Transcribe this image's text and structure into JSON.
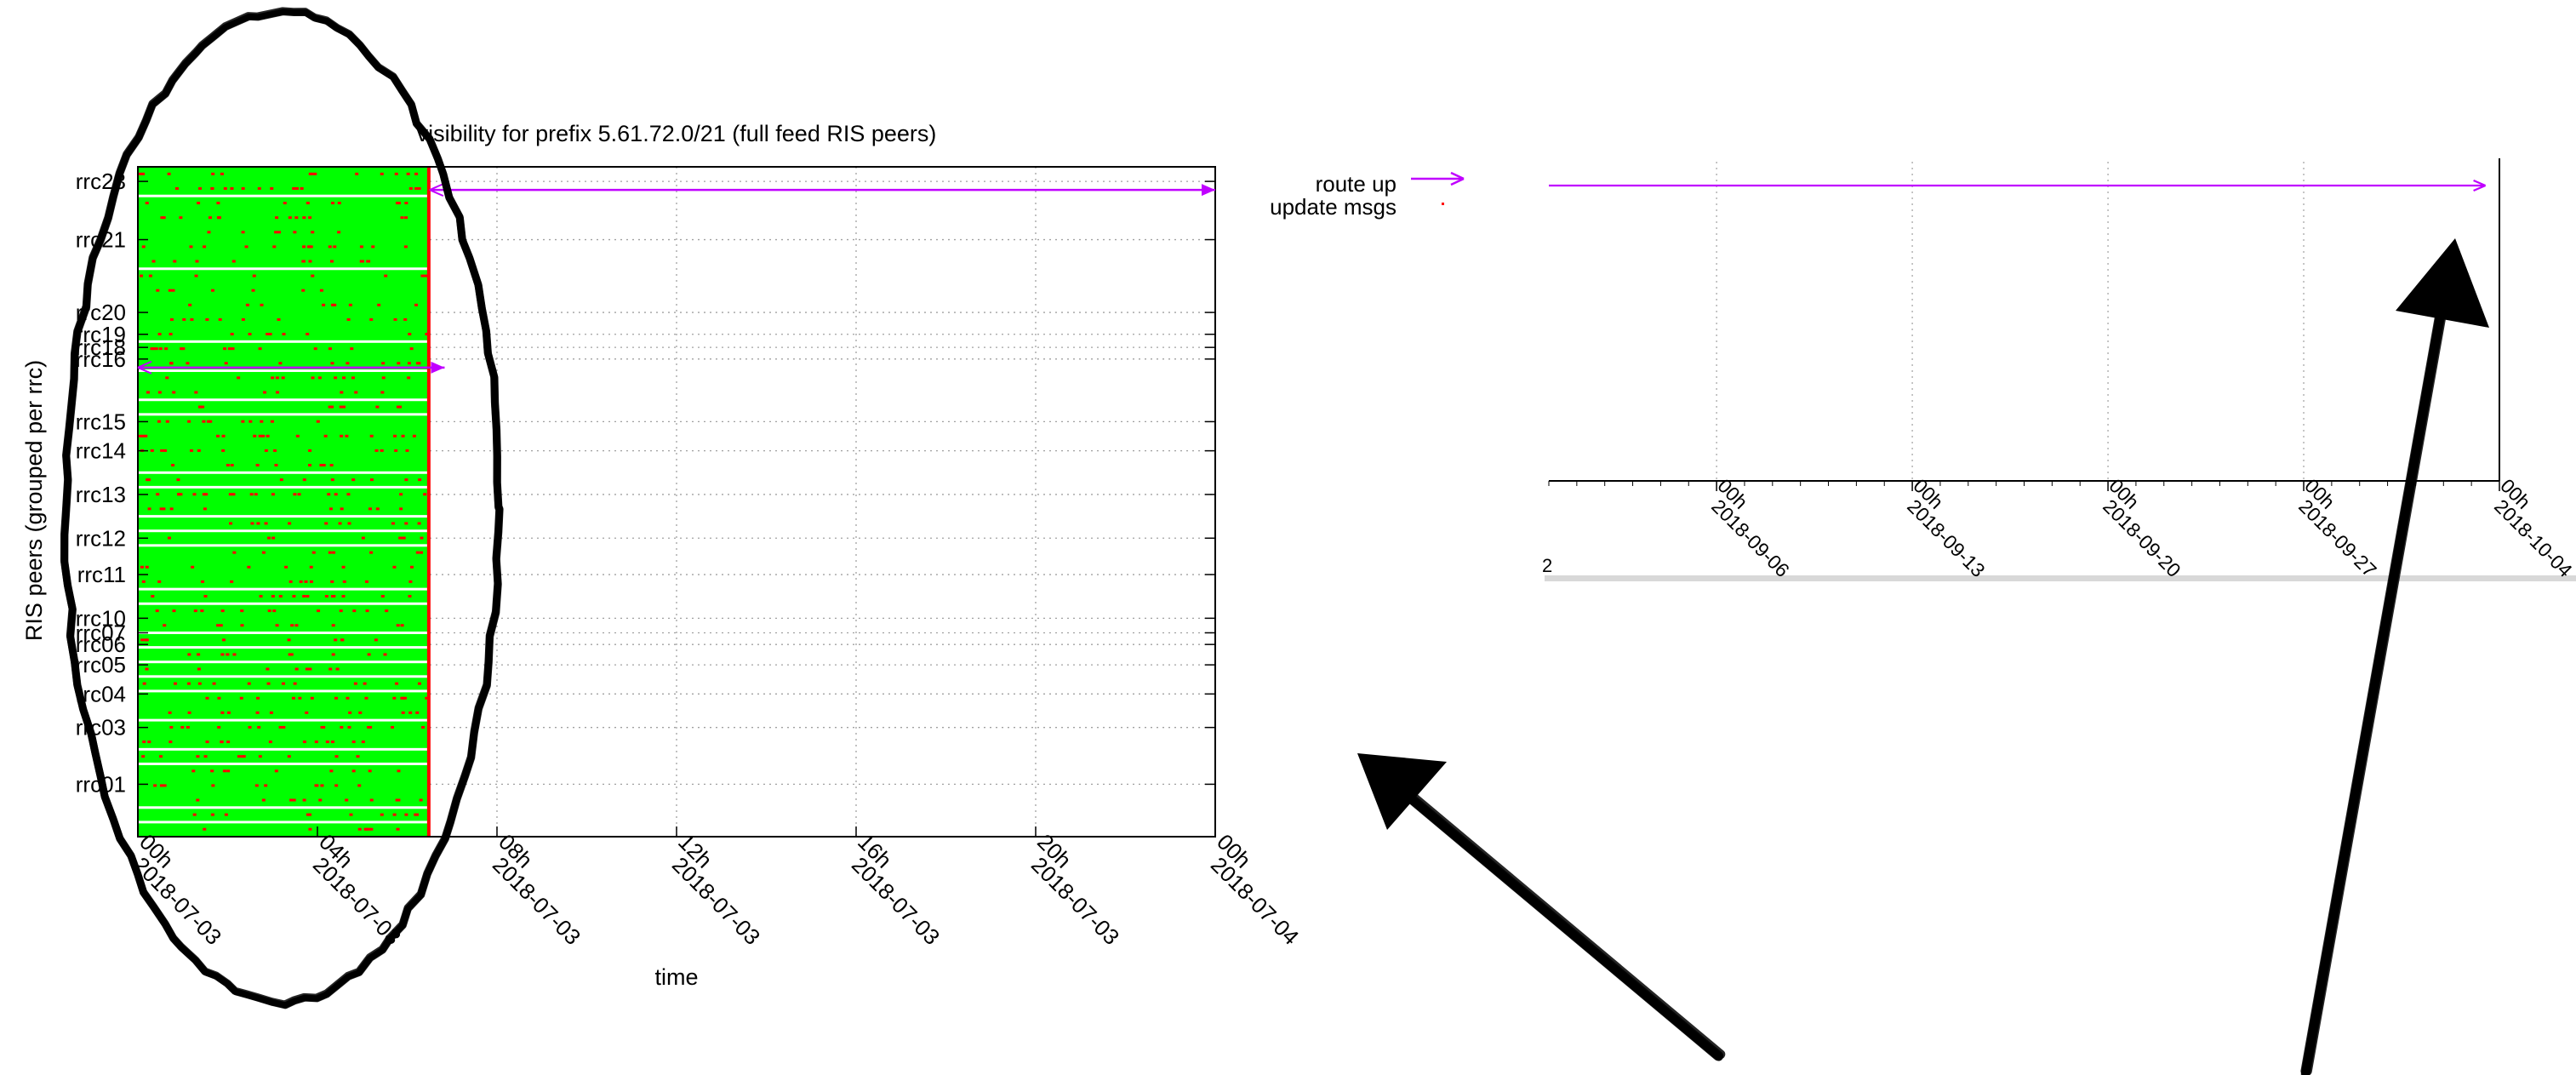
{
  "colors": {
    "visible": "#00ff00",
    "route_up": "#c000ff",
    "update_msgs": "#ff0000",
    "grid": "#a0a0a0",
    "annotation": "#000000",
    "inset_shadow": "#b8b8b8"
  },
  "chart_data": [
    {
      "type": "timeline",
      "title": "visibility for prefix 5.61.72.0/21 (full feed RIS peers)",
      "xlabel": "time",
      "ylabel": "RIS peers (grouped per rrc)",
      "x_ticks": [
        {
          "time": "2018-07-03 00:00",
          "lines": [
            "00h",
            "2018-07-03"
          ]
        },
        {
          "time": "2018-07-03 04:00",
          "lines": [
            "04h",
            "2018-07-03"
          ]
        },
        {
          "time": "2018-07-03 08:00",
          "lines": [
            "08h",
            "2018-07-03"
          ]
        },
        {
          "time": "2018-07-03 12:00",
          "lines": [
            "12h",
            "2018-07-03"
          ]
        },
        {
          "time": "2018-07-03 16:00",
          "lines": [
            "16h",
            "2018-07-03"
          ]
        },
        {
          "time": "2018-07-03 20:00",
          "lines": [
            "20h",
            "2018-07-03"
          ]
        },
        {
          "time": "2018-07-04 00:00",
          "lines": [
            "00h",
            "2018-07-04"
          ]
        }
      ],
      "xlim": [
        "2018-07-03 00:00",
        "2018-07-04 00:00"
      ],
      "data_end": "2018-07-03 06:30",
      "grid": true,
      "y_groups": [
        {
          "name": "rrc23",
          "peer_index": 1
        },
        {
          "name": "rrc21",
          "peer_index": 5
        },
        {
          "name": "rrc20",
          "peer_index": 10
        },
        {
          "name": "rrc19",
          "peer_index": 11.5
        },
        {
          "name": "rrc18",
          "peer_index": 12.4
        },
        {
          "name": "rrc16",
          "peer_index": 13.2
        },
        {
          "name": "rrc15",
          "peer_index": 17.5
        },
        {
          "name": "rrc14",
          "peer_index": 19.5
        },
        {
          "name": "rrc13",
          "peer_index": 22.5
        },
        {
          "name": "rrc12",
          "peer_index": 25.5
        },
        {
          "name": "rrc11",
          "peer_index": 28
        },
        {
          "name": "rrc10",
          "peer_index": 31
        },
        {
          "name": "rrc07",
          "peer_index": 32
        },
        {
          "name": "rrc06",
          "peer_index": 32.8
        },
        {
          "name": "rrc05",
          "peer_index": 34.2
        },
        {
          "name": "rrc04",
          "peer_index": 36.2
        },
        {
          "name": "rrc03",
          "peer_index": 38.5
        },
        {
          "name": "rrc01",
          "peer_index": 42.4
        }
      ],
      "peer_count": 46,
      "route_up_rows": [
        {
          "group": "rrc23",
          "start": "2018-07-03 06:30",
          "end": "2018-07-04 00:00"
        },
        {
          "group": "rrc16",
          "start": "2018-07-03 00:00",
          "end": "2018-07-03 06:50"
        }
      ],
      "legend": {
        "position": "right-outside",
        "entries": [
          {
            "label": "route up",
            "mark": "arrow"
          },
          {
            "label": "update msgs",
            "mark": "dot"
          }
        ]
      }
    },
    {
      "type": "timeline",
      "x_ticks": [
        {
          "time": "2018-09-06 00:00",
          "lines": [
            "00h",
            "2018-09-06"
          ]
        },
        {
          "time": "2018-09-13 00:00",
          "lines": [
            "00h",
            "2018-09-13"
          ]
        },
        {
          "time": "2018-09-20 00:00",
          "lines": [
            "00h",
            "2018-09-20"
          ]
        },
        {
          "time": "2018-09-27 00:00",
          "lines": [
            "00h",
            "2018-09-27"
          ]
        },
        {
          "time": "2018-10-04 00:00",
          "lines": [
            "00h",
            "2018-10-04"
          ]
        }
      ],
      "xlim": [
        "2018-08-31 00:00",
        "2018-10-04 00:00"
      ],
      "route_up_rows": [
        {
          "start": "2018-08-31 00:00",
          "end": "2018-10-03 12:00"
        }
      ],
      "grid": true
    }
  ],
  "annotations": [
    {
      "kind": "hand-drawn ellipse",
      "around": "2018-07-03 00:00 to 06:30"
    },
    {
      "kind": "hand-drawn arrow",
      "points_to": "main chart"
    },
    {
      "kind": "hand-drawn arrow",
      "points_to": "inset route-up end"
    }
  ]
}
